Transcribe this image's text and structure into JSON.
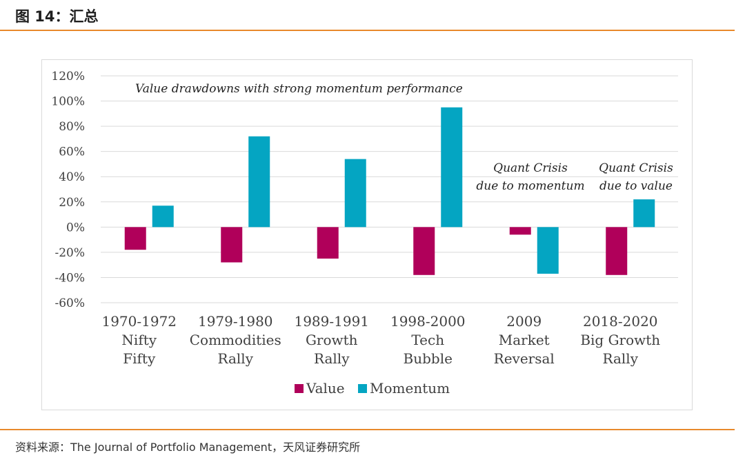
{
  "page": {
    "title": "图 14：汇总",
    "source_label": "资料来源：",
    "source_text": "The Journal of Portfolio Management，天风证券研究所"
  },
  "chart_data": {
    "type": "bar",
    "categories": [
      [
        "1970-1972",
        "Nifty",
        "Fifty"
      ],
      [
        "1979-1980",
        "Commodities",
        "Rally"
      ],
      [
        "1989-1991",
        "Growth",
        "Rally"
      ],
      [
        "1998-2000",
        "Tech",
        "Bubble"
      ],
      [
        "2009",
        "Market",
        "Reversal"
      ],
      [
        "2018-2020",
        "Big Growth",
        "Rally"
      ]
    ],
    "series": [
      {
        "name": "Value",
        "color": "#b0005a",
        "values": [
          -18,
          -28,
          -25,
          -38,
          -6,
          -38
        ]
      },
      {
        "name": "Momentum",
        "color": "#04a5c2",
        "values": [
          17,
          72,
          54,
          95,
          -37,
          22
        ]
      }
    ],
    "ylim": [
      -60,
      120
    ],
    "yticks": [
      -60,
      -40,
      -20,
      0,
      20,
      40,
      60,
      80,
      100,
      120
    ],
    "ytick_labels": [
      "-60%",
      "-40%",
      "-20%",
      "0%",
      "20%",
      "40%",
      "60%",
      "80%",
      "100%",
      "120%"
    ],
    "grid": true,
    "legend": "bottom-center",
    "annotations": [
      {
        "lines": [
          "Value drawdowns with strong momentum performance"
        ],
        "near": "top-left"
      },
      {
        "lines": [
          "Quant Crisis",
          "due to momentum"
        ],
        "near": "2009"
      },
      {
        "lines": [
          "Quant Crisis",
          "due to value"
        ],
        "near": "2018-2020"
      }
    ]
  }
}
